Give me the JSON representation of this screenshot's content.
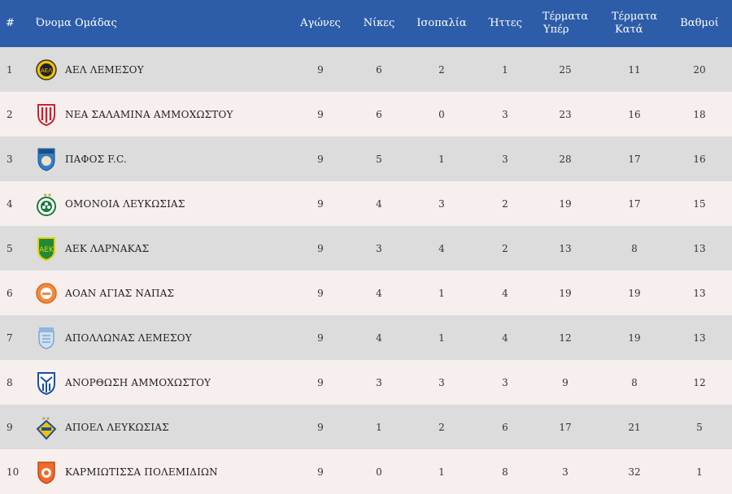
{
  "headers": {
    "pos": "#",
    "team": "Όνομα Ομάδας",
    "played": "Αγώνες",
    "wins": "Νίκες",
    "draws": "Ισοπαλία",
    "losses": "Ήττες",
    "gf_line1": "Τέρματα",
    "gf_line2": "Υπέρ",
    "ga_line1": "Τέρματα",
    "ga_line2": "Κατά",
    "points": "Βαθμοί"
  },
  "colors": {
    "header_bg": "#2d5da8",
    "row_odd": "#dcdcdc",
    "row_even": "#f7eeee"
  },
  "rows": [
    {
      "pos": "1",
      "team": "ΑΕΛ ΛΕΜΕΣΟΥ",
      "played": "9",
      "wins": "6",
      "draws": "2",
      "losses": "1",
      "gf": "25",
      "ga": "11",
      "points": "20",
      "logo": "ael-limassol-crest-icon"
    },
    {
      "pos": "2",
      "team": "ΝΕΑ ΣΑΛΑΜΙΝΑ ΑΜΜΟΧΩΣΤΟΥ",
      "played": "9",
      "wins": "6",
      "draws": "0",
      "losses": "3",
      "gf": "23",
      "ga": "16",
      "points": "18",
      "logo": "nea-salamis-crest-icon"
    },
    {
      "pos": "3",
      "team": "ΠΑΦΟΣ F.C.",
      "played": "9",
      "wins": "5",
      "draws": "1",
      "losses": "3",
      "gf": "28",
      "ga": "17",
      "points": "16",
      "logo": "pafos-fc-crest-icon"
    },
    {
      "pos": "4",
      "team": "ΟΜΟΝΟΙΑ ΛΕΥΚΩΣΙΑΣ",
      "played": "9",
      "wins": "4",
      "draws": "3",
      "losses": "2",
      "gf": "19",
      "ga": "17",
      "points": "15",
      "logo": "omonia-crest-icon"
    },
    {
      "pos": "5",
      "team": "ΑΕΚ ΛΑΡΝΑΚΑΣ",
      "played": "9",
      "wins": "3",
      "draws": "4",
      "losses": "2",
      "gf": "13",
      "ga": "8",
      "points": "13",
      "logo": "aek-larnaca-crest-icon"
    },
    {
      "pos": "6",
      "team": "ΑΟΑΝ ΑΓΙΑΣ ΝΑΠΑΣ",
      "played": "9",
      "wins": "4",
      "draws": "1",
      "losses": "4",
      "gf": "19",
      "ga": "19",
      "points": "13",
      "logo": "ayia-napa-crest-icon"
    },
    {
      "pos": "7",
      "team": "ΑΠΟΛΛΩΝΑΣ ΛΕΜΕΣΟΥ",
      "played": "9",
      "wins": "4",
      "draws": "1",
      "losses": "4",
      "gf": "12",
      "ga": "19",
      "points": "13",
      "logo": "apollon-crest-icon"
    },
    {
      "pos": "8",
      "team": "ΑΝΟΡΘΩΣΗ ΑΜΜΟΧΩΣΤΟΥ",
      "played": "9",
      "wins": "3",
      "draws": "3",
      "losses": "3",
      "gf": "9",
      "ga": "8",
      "points": "12",
      "logo": "anorthosis-crest-icon"
    },
    {
      "pos": "9",
      "team": "ΑΠΟΕΛ ΛΕΥΚΩΣΙΑΣ",
      "played": "9",
      "wins": "1",
      "draws": "2",
      "losses": "6",
      "gf": "17",
      "ga": "21",
      "points": "5",
      "logo": "apoel-crest-icon"
    },
    {
      "pos": "10",
      "team": "ΚΑΡΜΙΩΤΙΣΣΑ ΠΟΛΕΜΙΔΙΩΝ",
      "played": "9",
      "wins": "0",
      "draws": "1",
      "losses": "8",
      "gf": "3",
      "ga": "32",
      "points": "1",
      "logo": "karmiotissa-crest-icon"
    }
  ]
}
